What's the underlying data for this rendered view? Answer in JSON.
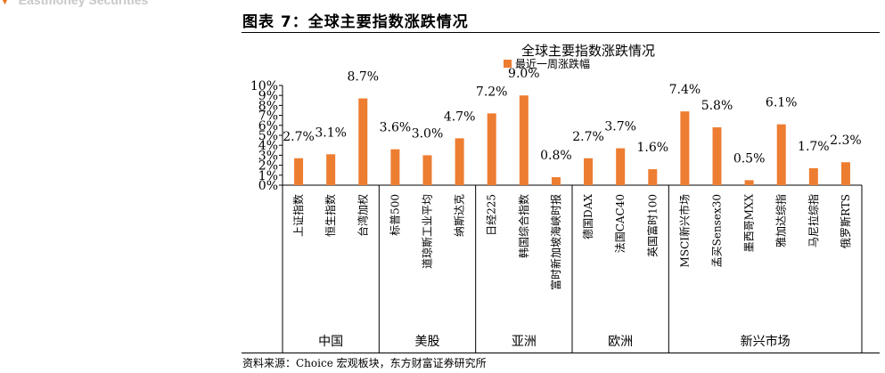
{
  "header": {
    "brand": "Eastmoney Securities"
  },
  "figure": {
    "title": "图表 7：全球主要指数涨跌情况",
    "source": "资料来源：Choice 宏观板块，东方财富证券研究所"
  },
  "chart_data": {
    "type": "bar",
    "title": "全球主要指数涨跌情况",
    "series": [
      {
        "name": "最近一周涨跌幅",
        "color": "#ED7D31",
        "values": [
          2.7,
          3.1,
          8.7,
          3.6,
          3.0,
          4.7,
          7.2,
          9.0,
          0.8,
          2.7,
          3.7,
          1.6,
          7.4,
          5.8,
          0.5,
          6.1,
          1.7,
          2.3
        ]
      }
    ],
    "categories": [
      "上证指数",
      "恒生指数",
      "台湾加权",
      "标普500",
      "道琼斯工业平均",
      "纳斯达克",
      "日经225",
      "韩国综合指数",
      "富时新加坡海峡时报",
      "德国DAX",
      "法国CAC40",
      "英国富时100",
      "MSCI新兴市场",
      "孟买Sensex30",
      "墨西哥MXX",
      "雅加达综指",
      "马尼拉综指",
      "俄罗斯RTS"
    ],
    "value_labels": [
      "2.7%",
      "3.1%",
      "8.7%",
      "3.6%",
      "3.0%",
      "4.7%",
      "7.2%",
      "9.0%",
      "0.8%",
      "2.7%",
      "3.7%",
      "1.6%",
      "7.4%",
      "5.8%",
      "0.5%",
      "6.1%",
      "1.7%",
      "2.3%"
    ],
    "groups": [
      {
        "name": "中国",
        "count": 3
      },
      {
        "name": "美股",
        "count": 3
      },
      {
        "name": "亚洲",
        "count": 3
      },
      {
        "name": "欧洲",
        "count": 3
      },
      {
        "name": "新兴市场",
        "count": 6
      }
    ],
    "ylim": [
      0,
      10
    ],
    "yticks": [
      "0%",
      "1%",
      "2%",
      "3%",
      "4%",
      "5%",
      "6%",
      "7%",
      "8%",
      "9%",
      "10%"
    ],
    "grid": false,
    "legend_position": "top"
  }
}
